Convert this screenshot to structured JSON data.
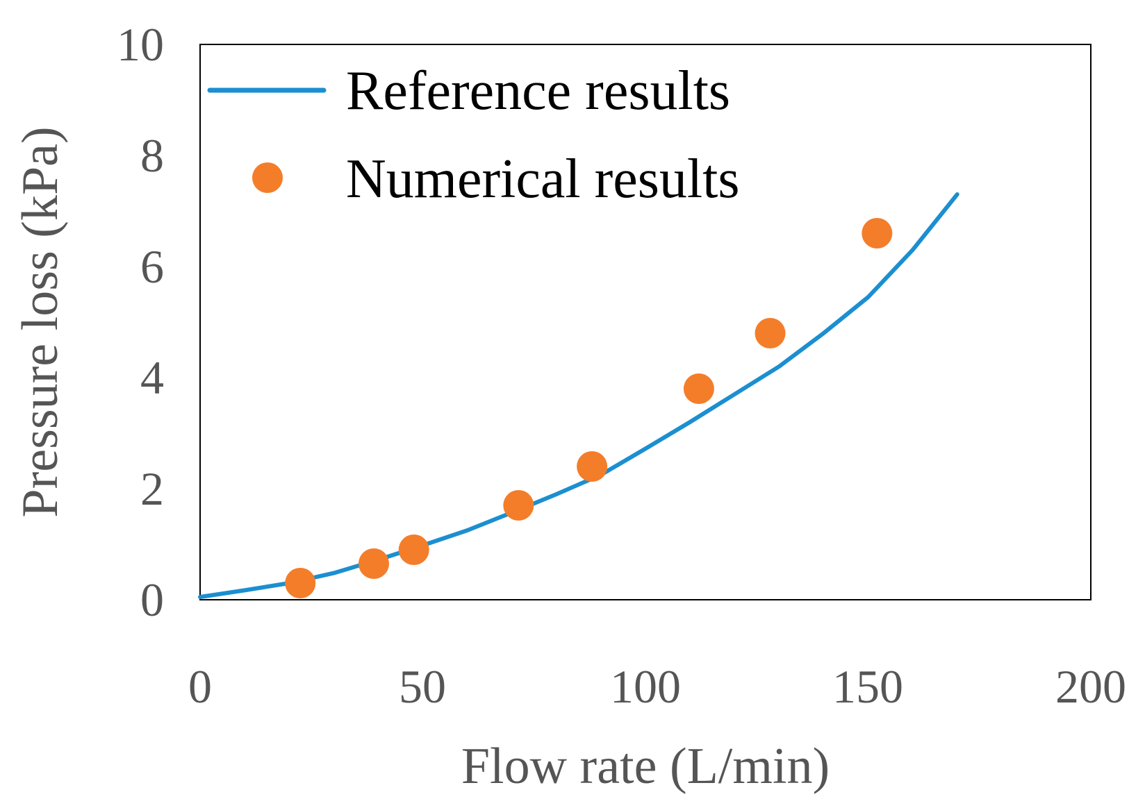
{
  "chart_data": {
    "type": "line",
    "title": "",
    "xlabel": "Flow rate (L/min)",
    "ylabel": "Pressure loss (kPa)",
    "xlim": [
      0,
      200
    ],
    "ylim": [
      0,
      10
    ],
    "x_ticks": [
      "0",
      "50",
      "100",
      "150",
      "200"
    ],
    "y_ticks": [
      "0",
      "2",
      "4",
      "6",
      "8",
      "10"
    ],
    "grid": false,
    "legend_position": "top-left",
    "colors": {
      "reference": "#1b8fd0",
      "numerical": "#f47d2a",
      "frame": "#000000"
    },
    "series": [
      {
        "name": "Reference results",
        "kind": "line",
        "x": [
          0,
          10,
          20,
          30,
          40,
          50,
          60,
          70,
          80,
          90,
          100,
          110,
          120,
          130,
          140,
          150,
          160,
          170
        ],
        "y": [
          0.05,
          0.17,
          0.3,
          0.48,
          0.72,
          0.98,
          1.25,
          1.57,
          1.9,
          2.25,
          2.72,
          3.2,
          3.7,
          4.2,
          4.8,
          5.45,
          6.3,
          7.3
        ]
      },
      {
        "name": "Numerical results",
        "kind": "scatter",
        "x": [
          22.5,
          39,
          48,
          71.5,
          88,
          112,
          128,
          152
        ],
        "y": [
          0.3,
          0.65,
          0.9,
          1.7,
          2.4,
          3.8,
          4.8,
          6.6
        ]
      }
    ]
  }
}
